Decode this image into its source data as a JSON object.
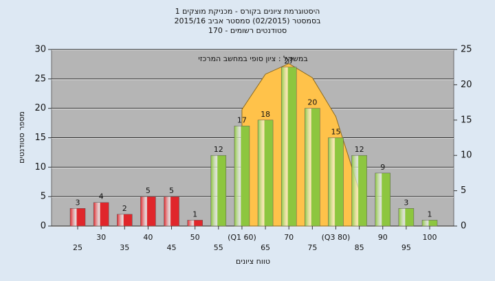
{
  "chart_data": {
    "type": "bar",
    "title": "היסטוגרמת ציונים בקורס - מכניקת מוצקים 1",
    "subtitle": "בסמסטר  (02/2015)  סמסטר אביב 2015/16",
    "subtitle2": "סטודנטים רשומים - 170",
    "annotation": "במשקל : ציון סופי במחשב המרכזי",
    "y_label": "מספר סטודנטים",
    "x_label": "טווח ציונים",
    "categories": [
      "25",
      "30",
      "35",
      "40",
      "45",
      "50",
      "55",
      "(Q1 60)",
      "65",
      "70",
      "75",
      "(Q3 80)",
      "85",
      "90",
      "95",
      "100"
    ],
    "series": [
      {
        "values": [
          3,
          4,
          2,
          5,
          5,
          1,
          12,
          17,
          18,
          27,
          20,
          15,
          12,
          9,
          3,
          1
        ],
        "colors": [
          "#e0262b",
          "#e0262b",
          "#e0262b",
          "#e0262b",
          "#e0262b",
          "#e0262b",
          "#8dc63f",
          "#8dc63f",
          "#8dc63f",
          "#8dc63f",
          "#8dc63f",
          "#8dc63f",
          "#8dc63f",
          "#8dc63f",
          "#8dc63f",
          "#8dc63f"
        ]
      },
      {
        "type": "area",
        "axis": "y2",
        "color": "#ffc24a",
        "values": [
          null,
          null,
          null,
          null,
          null,
          null,
          null,
          16.5,
          21.5,
          23,
          21,
          15.5,
          5,
          null,
          null,
          null
        ]
      }
    ],
    "ylim": [
      0,
      30
    ],
    "yticks": [
      0,
      5,
      10,
      15,
      20,
      25,
      30
    ],
    "y2lim": [
      0,
      25
    ],
    "y2ticks": [
      0,
      5,
      10,
      15,
      20,
      25
    ],
    "grid": true
  }
}
